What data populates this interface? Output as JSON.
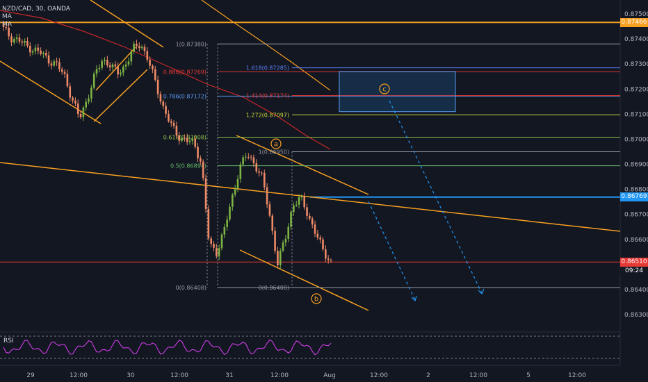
{
  "header": {
    "symbol_line": "NZD/CAD, 30, OANDA",
    "indicators": [
      "MA",
      "MA"
    ]
  },
  "rsi_label": "RSI",
  "price_tags": [
    {
      "price": 0.87466,
      "label": "0.87466",
      "color": "#f7a021"
    },
    {
      "price": 0.86769,
      "label": "0.86769",
      "color": "#2196f3"
    },
    {
      "price": 0.8651,
      "label": "0.86510",
      "color": "#e53935"
    }
  ],
  "countdown": "09:24",
  "chart_data": {
    "type": "candlestick",
    "symbol": "NZD/CAD",
    "timeframe": "30",
    "ylim": [
      0.8625,
      0.8758
    ],
    "y_ticks": [
      "0.87500",
      "0.87400",
      "0.87300",
      "0.87200",
      "0.87100",
      "0.87000",
      "0.86900",
      "0.86800",
      "0.86700",
      "0.86600",
      "0.86500",
      "0.86400",
      "0.86300"
    ],
    "x_ticks": [
      "29",
      "12:00",
      "30",
      "12:00",
      "31",
      "12:00",
      "Aug",
      "12:00",
      "2",
      "12:00",
      "5",
      "12:00"
    ],
    "close_series": [
      0.8744,
      0.87405,
      0.87395,
      0.87372,
      0.87358,
      0.87342,
      0.87315,
      0.87296,
      0.87255,
      0.8716,
      0.87082,
      0.87162,
      0.87255,
      0.87318,
      0.87298,
      0.87262,
      0.87296,
      0.87358,
      0.87382,
      0.87318,
      0.8722,
      0.87125,
      0.87055,
      0.87012,
      0.86995,
      0.86985,
      0.86905,
      0.8658,
      0.8655,
      0.86638,
      0.86762,
      0.86888,
      0.8694,
      0.86902,
      0.86842,
      0.86688,
      0.86505,
      0.86602,
      0.86739,
      0.86764,
      0.86698,
      0.86625,
      0.86552,
      0.8651
    ],
    "fib_left": [
      {
        "label": "1(0.87380)",
        "value": 0.8738,
        "color": "#9598a1"
      },
      {
        "label": "0.886(0.87269)",
        "value": 0.87269,
        "color": "#e53935"
      },
      {
        "label": "0.786(0.87172)",
        "value": 0.87172,
        "color": "#5b9cf6"
      },
      {
        "label": "0.618(0.87008)",
        "value": 0.87008,
        "color": "#8bc34a"
      },
      {
        "label": "0.5(0.86894)",
        "value": 0.86894,
        "color": "#66bb6a"
      },
      {
        "label": "0(0.86408)",
        "value": 0.86408,
        "color": "#9598a1"
      }
    ],
    "fib_ext": [
      {
        "label": "1.618(0.87285)",
        "value": 0.87285,
        "color": "#5b7ff6"
      },
      {
        "label": "1.414(0.87174)",
        "value": 0.87174,
        "color": "#e53935"
      },
      {
        "label": "1.272(0.87097)",
        "value": 0.87097,
        "color": "#cddc39"
      },
      {
        "label": "1(0.86950)",
        "value": 0.8695,
        "color": "#9598a1"
      },
      {
        "label": "0(0.86408)",
        "value": 0.86408,
        "color": "#9598a1"
      }
    ],
    "wave_labels": [
      "a",
      "b",
      "c"
    ],
    "target_box": {
      "top": 0.8727,
      "bottom": 0.8711
    }
  }
}
